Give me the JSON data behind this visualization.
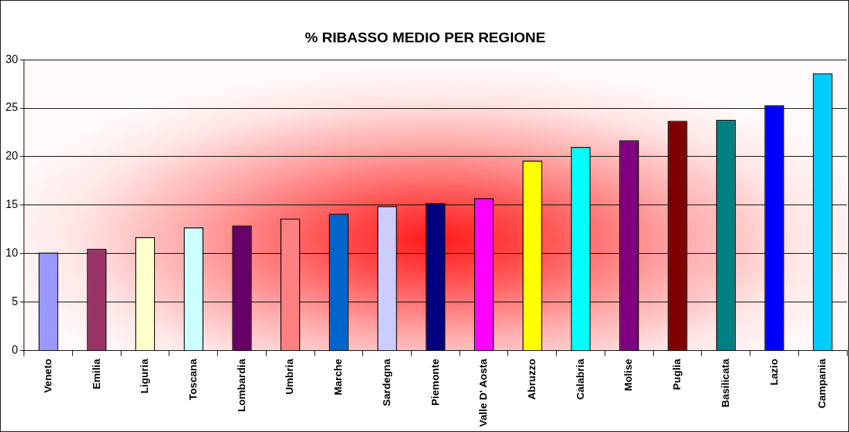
{
  "chart_data": {
    "type": "bar",
    "title": "% RIBASSO MEDIO PER REGIONE",
    "categories": [
      "Veneto",
      "Emilia",
      "Liguria",
      "Toscana",
      "Lombardia",
      "Umbria",
      "Marche",
      "Sardegna",
      "Piemonte",
      "Valle D' Aosta",
      "Abruzzo",
      "Calabria",
      "Molise",
      "Puglia",
      "Basilicata",
      "Lazio",
      "Campania"
    ],
    "values": [
      10.1,
      10.5,
      11.7,
      12.7,
      12.9,
      13.6,
      14.1,
      14.9,
      15.2,
      15.7,
      19.6,
      21.0,
      21.7,
      23.7,
      23.8,
      25.3,
      28.6
    ],
    "colors": [
      "#9999ff",
      "#993366",
      "#ffffcc",
      "#ccffff",
      "#660066",
      "#ff8080",
      "#0066cc",
      "#ccccff",
      "#000080",
      "#ff00ff",
      "#ffff00",
      "#00ffff",
      "#800080",
      "#800000",
      "#008080",
      "#0000ff",
      "#00ccff"
    ],
    "ylim": [
      0,
      30
    ],
    "yticks": [
      0,
      5,
      10,
      15,
      20,
      25,
      30
    ],
    "grid": "y",
    "legend": false
  }
}
